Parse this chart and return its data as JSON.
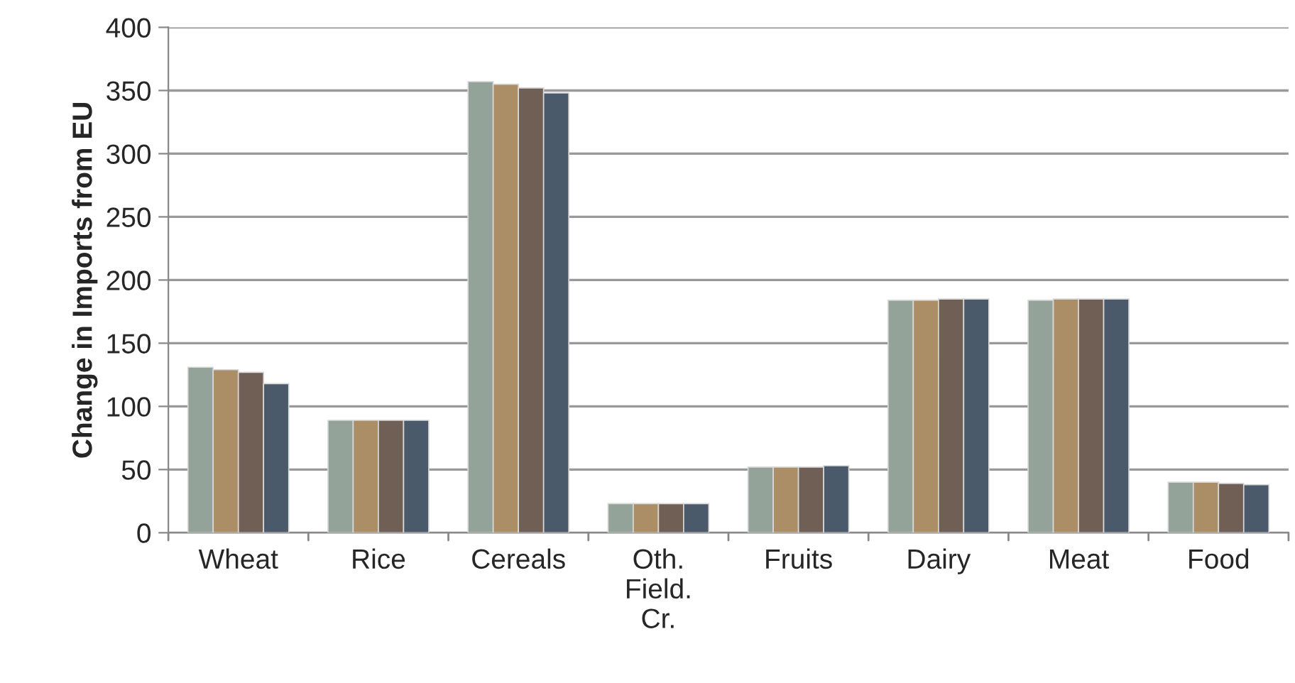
{
  "chart_data": {
    "type": "bar",
    "ylabel": "Change in Imports from EU",
    "categories": [
      "Wheat",
      "Rice",
      "Cereals",
      "Oth. Field. Cr.",
      "Fruits",
      "Dairy",
      "Meat",
      "Food"
    ],
    "series": [
      {
        "color": "#94a39a",
        "values": [
          131,
          89,
          357,
          23,
          52,
          184,
          184,
          40
        ]
      },
      {
        "color": "#ab8d66",
        "values": [
          129,
          89,
          355,
          23,
          52,
          184,
          185,
          40
        ]
      },
      {
        "color": "#705f55",
        "values": [
          127,
          89,
          352,
          23,
          52,
          185,
          185,
          39
        ]
      },
      {
        "color": "#4b5a6a",
        "values": [
          118,
          89,
          348,
          23,
          53,
          185,
          185,
          38
        ]
      }
    ],
    "ylim": [
      0,
      400
    ],
    "yticks": [
      0,
      50,
      100,
      150,
      200,
      250,
      300,
      350,
      400
    ],
    "grid": "y",
    "legend": false
  }
}
